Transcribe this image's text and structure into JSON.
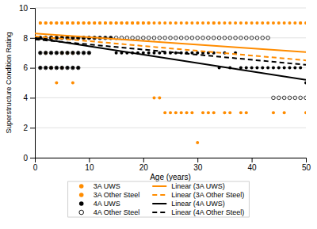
{
  "chart_data": {
    "type": "scatter",
    "xlabel": "Age (years)",
    "ylabel": "Superstructure Condition Rating",
    "xlim": [
      0,
      50
    ],
    "ylim": [
      0,
      10
    ],
    "xticks": [
      0,
      10,
      20,
      30,
      40,
      50
    ],
    "yticks": [
      0,
      2,
      4,
      6,
      8,
      10
    ],
    "grid": "y",
    "legend": "bottom",
    "series": [
      {
        "name": "3A UWS",
        "type": "scatter",
        "marker": "circle",
        "color": "#FF8C00",
        "x": [
          1,
          1,
          2,
          2,
          2,
          3,
          3,
          3,
          4,
          4,
          4,
          5,
          5,
          5,
          5,
          6,
          6,
          6,
          7,
          7,
          7,
          7,
          8,
          8,
          9,
          9,
          10,
          10,
          11,
          11,
          12,
          13,
          14,
          15,
          16,
          17,
          18,
          19,
          20,
          21,
          22,
          23,
          24,
          25,
          26,
          27,
          28,
          29,
          30,
          31,
          32,
          33,
          35,
          36,
          38,
          39,
          44,
          46,
          50
        ],
        "values": [
          9,
          8,
          9,
          8,
          7,
          9,
          8,
          6,
          9,
          8,
          5,
          9,
          8,
          7,
          6,
          9,
          8,
          7,
          9,
          8,
          7,
          5,
          9,
          8,
          9,
          8,
          9,
          8,
          9,
          8,
          9,
          9,
          9,
          9,
          9,
          9,
          9,
          9,
          9,
          9,
          4,
          4,
          3,
          3,
          3,
          3,
          3,
          3,
          1,
          3,
          3,
          3,
          3,
          3,
          3,
          3,
          3,
          3,
          3
        ]
      },
      {
        "name": "3A Other Steel",
        "type": "scatter",
        "marker": "circle",
        "color": "#FF8C00",
        "x": [
          1,
          1,
          2,
          2,
          3,
          3,
          4,
          4,
          5,
          5,
          6,
          6,
          7,
          7,
          8,
          8,
          9,
          9,
          10,
          11,
          12,
          13,
          14,
          15,
          16,
          17,
          18,
          19,
          20,
          21,
          22,
          23,
          24,
          25,
          26,
          27,
          28,
          29,
          30,
          31,
          32,
          33,
          34,
          35,
          36,
          37,
          38,
          39,
          40,
          41,
          42,
          43,
          44,
          45,
          46,
          47,
          48,
          49,
          50,
          33,
          49
        ],
        "values": [
          9,
          8,
          9,
          8,
          9,
          8,
          9,
          8,
          9,
          8,
          9,
          8,
          9,
          8,
          9,
          8,
          9,
          8,
          9,
          9,
          9,
          9,
          9,
          9,
          9,
          9,
          9,
          9,
          9,
          9,
          9,
          9,
          9,
          9,
          9,
          9,
          9,
          9,
          9,
          9,
          9,
          9,
          9,
          9,
          9,
          9,
          9,
          9,
          9,
          9,
          9,
          9,
          9,
          9,
          9,
          9,
          9,
          9,
          9,
          9,
          9
        ]
      },
      {
        "name": "4A UWS",
        "type": "scatter",
        "marker": "circle",
        "color": "#000000",
        "x": [
          1,
          1,
          1,
          2,
          2,
          2,
          3,
          3,
          3,
          4,
          4,
          4,
          5,
          5,
          5,
          6,
          6,
          6,
          7,
          7,
          7,
          8,
          8,
          8,
          9,
          9,
          10,
          10,
          11,
          12,
          13,
          14,
          15,
          16,
          17,
          18,
          19,
          20,
          21,
          22,
          23,
          24,
          25,
          26,
          27,
          28,
          29,
          30,
          31,
          32,
          33,
          34,
          35,
          36,
          37,
          38,
          39,
          40,
          41,
          42,
          43,
          44,
          45,
          46,
          47,
          48,
          49,
          50
        ],
        "values": [
          8,
          7,
          6,
          8,
          7,
          6,
          8,
          7,
          6,
          8,
          7,
          6,
          8,
          7,
          6,
          8,
          7,
          6,
          8,
          7,
          6,
          8,
          7,
          6,
          8,
          7,
          8,
          7,
          8,
          8,
          8,
          8,
          7,
          7,
          7,
          7,
          7,
          7,
          7,
          7,
          7,
          7,
          7,
          7,
          7,
          7,
          7,
          7,
          7,
          7,
          7,
          6,
          7,
          6,
          7,
          6,
          6,
          6,
          6,
          6,
          6,
          6,
          6,
          6,
          6,
          6,
          6,
          5
        ]
      },
      {
        "name": "4A Other Steel",
        "type": "scatter",
        "marker": "open-circle",
        "color": "#000000",
        "x": [
          1,
          1,
          1,
          2,
          2,
          2,
          3,
          3,
          3,
          4,
          4,
          4,
          5,
          5,
          5,
          6,
          6,
          6,
          7,
          7,
          7,
          8,
          8,
          8,
          9,
          9,
          10,
          10,
          11,
          12,
          13,
          14,
          15,
          16,
          17,
          18,
          19,
          20,
          21,
          22,
          23,
          24,
          25,
          26,
          27,
          28,
          29,
          30,
          31,
          32,
          33,
          34,
          35,
          36,
          37,
          38,
          39,
          40,
          41,
          42,
          43,
          44,
          45,
          46,
          47,
          48,
          49,
          50
        ],
        "values": [
          8,
          7,
          6,
          8,
          7,
          6,
          8,
          7,
          6,
          8,
          7,
          6,
          8,
          7,
          6,
          8,
          7,
          6,
          8,
          7,
          6,
          8,
          7,
          6,
          8,
          7,
          8,
          7,
          8,
          8,
          8,
          8,
          8,
          8,
          8,
          8,
          8,
          8,
          8,
          8,
          8,
          8,
          8,
          8,
          8,
          8,
          8,
          8,
          8,
          8,
          8,
          8,
          8,
          8,
          8,
          8,
          8,
          8,
          8,
          8,
          8,
          4,
          4,
          4,
          4,
          4,
          4,
          4
        ]
      },
      {
        "name": "Linear (3A UWS)",
        "type": "line",
        "line_style": "solid",
        "color": "#FF8C00",
        "x": [
          0,
          50
        ],
        "values": [
          8.3,
          7.05
        ]
      },
      {
        "name": "Linear (3A Other Steel)",
        "type": "line",
        "line_style": "dashed",
        "color": "#FF8C00",
        "x": [
          0,
          50
        ],
        "values": [
          8.1,
          6.5
        ]
      },
      {
        "name": "Linear (4A UWS)",
        "type": "line",
        "line_style": "solid",
        "color": "#000000",
        "x": [
          0,
          50
        ],
        "values": [
          8.0,
          5.2
        ]
      },
      {
        "name": "Linear (4A Other Steel)",
        "type": "line",
        "line_style": "dashed",
        "color": "#000000",
        "x": [
          0,
          50
        ],
        "values": [
          7.9,
          6.2
        ]
      }
    ]
  }
}
